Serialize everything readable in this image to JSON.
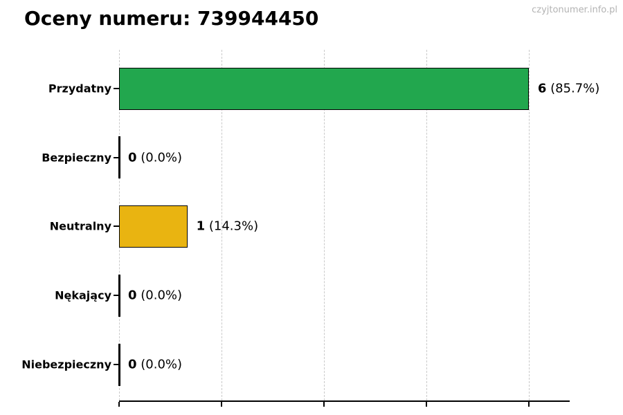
{
  "header": {
    "title": "Oceny numeru: 739944450",
    "watermark": "czyjtonumer.info.pl"
  },
  "chart_data": {
    "type": "bar",
    "orientation": "horizontal",
    "title": "Oceny numeru: 739944450",
    "categories": [
      "Przydatny",
      "Bezpieczny",
      "Neutralny",
      "Nękający",
      "Niebezpieczny"
    ],
    "values": [
      6,
      0,
      1,
      0,
      0
    ],
    "percentages": [
      85.7,
      0.0,
      14.3,
      0.0,
      0.0
    ],
    "value_labels": [
      "6",
      "0",
      "1",
      "0",
      "0"
    ],
    "percent_labels": [
      "(85.7%)",
      "(0.0%)",
      "(14.3%)",
      "(0.0%)",
      "(0.0%)"
    ],
    "bar_colors": [
      "#22a74e",
      null,
      "#e9b411",
      null,
      null
    ],
    "bar_edge_color": "#000000",
    "xlim": [
      0,
      6.6
    ],
    "x_ticks": [
      0,
      1.5,
      3,
      4.5,
      6
    ],
    "x_tick_labels_visible": false,
    "grid": true,
    "gridline_color": "#c9c9c9",
    "legend": "none",
    "ylabel": "",
    "xlabel": ""
  },
  "colors": {
    "positive_bar": "#22a74e",
    "neutral_bar": "#e9b411",
    "axis": "#000000",
    "watermark_text": "#b3b3b3"
  }
}
